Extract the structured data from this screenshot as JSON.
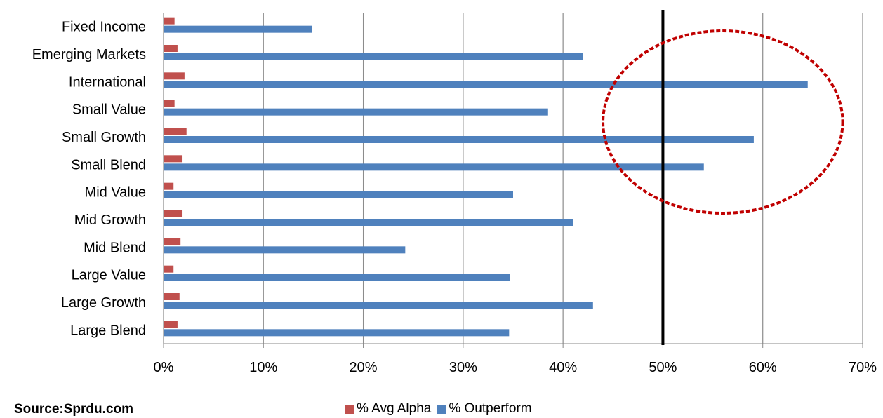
{
  "chart_data": {
    "type": "bar",
    "orientation": "horizontal",
    "categories": [
      "Fixed Income",
      "Emerging Markets",
      "International",
      "Small Value",
      "Small Growth",
      "Small Blend",
      "Mid Value",
      "Mid Growth",
      "Mid Blend",
      "Large Value",
      "Large Growth",
      "Large Blend"
    ],
    "series": [
      {
        "name": "% Avg Alpha",
        "color": "#c0504d",
        "values": [
          1.1,
          1.4,
          2.1,
          1.1,
          2.3,
          1.9,
          1.0,
          1.9,
          1.7,
          1.0,
          1.6,
          1.4
        ]
      },
      {
        "name": "% Outperform",
        "color": "#4f81bd",
        "values": [
          14.9,
          42.0,
          64.5,
          38.5,
          59.1,
          54.1,
          35.0,
          41.0,
          24.2,
          34.7,
          43.0,
          34.6
        ]
      }
    ],
    "x_ticks": [
      "0%",
      "10%",
      "20%",
      "30%",
      "40%",
      "50%",
      "60%",
      "70%"
    ],
    "xlim": [
      0,
      70
    ],
    "grid": true,
    "reference_line": {
      "x": 50,
      "color": "#000000"
    },
    "highlight_ellipse": {
      "color": "#c00000",
      "x_range": [
        44,
        68
      ]
    },
    "legend": {
      "position": "bottom",
      "items": [
        "% Avg Alpha",
        "% Outperform"
      ]
    },
    "source_note": "Source:Sprdu.com"
  }
}
